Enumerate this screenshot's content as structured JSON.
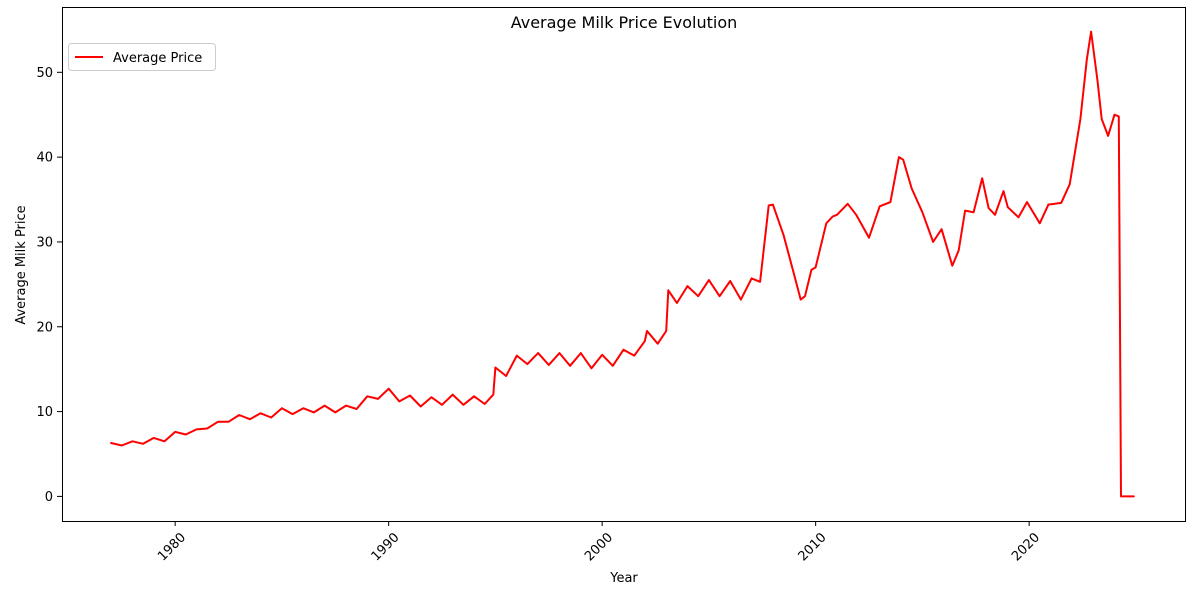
{
  "chart_data": {
    "type": "line",
    "title": "Average Milk Price Evolution",
    "xlabel": "Year",
    "ylabel": "Average Milk Price",
    "xlim": [
      1974.7,
      2027.3
    ],
    "ylim": [
      -2.9,
      57.7
    ],
    "x_ticks": [
      1980,
      1990,
      2000,
      2010,
      2020
    ],
    "x_tick_labels": [
      "1980",
      "1990",
      "2000",
      "2010",
      "2020"
    ],
    "y_ticks": [
      0,
      10,
      20,
      30,
      40,
      50
    ],
    "y_tick_labels": [
      "0",
      "10",
      "20",
      "30",
      "40",
      "50"
    ],
    "grid": false,
    "legend": {
      "position": "top-left",
      "entries": [
        "Average Price"
      ]
    },
    "colors": {
      "series": "#ff0000",
      "axes": "#000000",
      "background": "#ffffff"
    },
    "series": [
      {
        "name": "Average Price",
        "x": [
          1977.0,
          1977.5,
          1978.0,
          1978.5,
          1979.0,
          1979.5,
          1980.0,
          1980.5,
          1981.0,
          1981.5,
          1982.0,
          1982.5,
          1983.0,
          1983.5,
          1984.0,
          1984.5,
          1985.0,
          1985.5,
          1986.0,
          1986.5,
          1987.0,
          1987.5,
          1988.0,
          1988.5,
          1989.0,
          1989.5,
          1990.0,
          1990.5,
          1991.0,
          1991.5,
          1992.0,
          1992.5,
          1993.0,
          1993.5,
          1994.0,
          1994.5,
          1994.9,
          1995.0,
          1995.5,
          1996.0,
          1996.5,
          1997.0,
          1997.5,
          1998.0,
          1998.5,
          1999.0,
          1999.5,
          2000.0,
          2000.5,
          2001.0,
          2001.5,
          2002.0,
          2002.1,
          2002.6,
          2003.0,
          2003.1,
          2003.5,
          2004.0,
          2004.5,
          2005.0,
          2005.5,
          2006.0,
          2006.5,
          2007.0,
          2007.4,
          2007.8,
          2008.0,
          2008.5,
          2008.9,
          2009.3,
          2009.5,
          2009.8,
          2010.0,
          2010.5,
          2010.8,
          2011.0,
          2011.5,
          2011.9,
          2012.5,
          2013.0,
          2013.5,
          2013.9,
          2014.1,
          2014.5,
          2015.0,
          2015.5,
          2015.9,
          2016.4,
          2016.7,
          2017.0,
          2017.4,
          2017.8,
          2018.1,
          2018.4,
          2018.8,
          2019.0,
          2019.5,
          2019.9,
          2020.5,
          2020.9,
          2021.5,
          2021.9,
          2022.4,
          2022.7,
          2022.9,
          2023.2,
          2023.4,
          2023.7,
          2024.0,
          2024.2,
          2024.3,
          2024.9
        ],
        "values": [
          6.3,
          6.0,
          6.5,
          6.2,
          6.9,
          6.5,
          7.6,
          7.3,
          7.9,
          8.0,
          8.8,
          8.8,
          9.6,
          9.1,
          9.8,
          9.3,
          10.4,
          9.7,
          10.4,
          9.9,
          10.7,
          9.9,
          10.7,
          10.3,
          11.8,
          11.5,
          12.7,
          11.2,
          11.9,
          10.6,
          11.7,
          10.8,
          12.0,
          10.8,
          11.8,
          10.9,
          12.0,
          15.2,
          14.2,
          16.6,
          15.6,
          16.9,
          15.5,
          16.9,
          15.4,
          16.9,
          15.1,
          16.7,
          15.4,
          17.3,
          16.6,
          18.3,
          19.5,
          18.0,
          19.5,
          24.3,
          22.8,
          24.8,
          23.6,
          25.5,
          23.6,
          25.4,
          23.2,
          25.7,
          25.3,
          34.3,
          34.4,
          30.8,
          27.0,
          23.2,
          23.6,
          26.7,
          27.0,
          32.2,
          33.0,
          33.2,
          34.5,
          33.2,
          30.5,
          34.2,
          34.7,
          40.0,
          39.7,
          36.3,
          33.5,
          30.0,
          31.5,
          27.2,
          29.0,
          33.7,
          33.5,
          37.5,
          34.0,
          33.2,
          36.0,
          34.1,
          32.9,
          34.7,
          32.2,
          34.4,
          34.6,
          36.8,
          44.5,
          51.5,
          54.8,
          49.0,
          44.5,
          42.5,
          45.0,
          44.8,
          0.0,
          0.0
        ]
      }
    ]
  }
}
